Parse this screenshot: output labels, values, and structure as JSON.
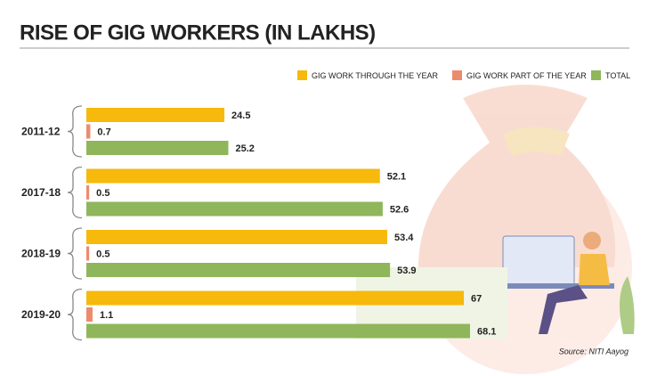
{
  "chart_data": {
    "type": "bar",
    "orientation": "horizontal",
    "title": "RISE OF GIG WORKERS (IN LAKHS)",
    "source": "Source: NITI Aayog",
    "categories": [
      "2011-12",
      "2017-18",
      "2018-19",
      "2019-20"
    ],
    "series": [
      {
        "name": "GIG WORK THROUGH THE YEAR",
        "color": "#f6b90c",
        "values": [
          24.5,
          52.1,
          53.4,
          67
        ]
      },
      {
        "name": "GIG WORK PART OF THE YEAR",
        "color": "#ee8a6c",
        "values": [
          0.7,
          0.5,
          0.5,
          1.1
        ]
      },
      {
        "name": "TOTAL",
        "color": "#8fb65b",
        "values": [
          25.2,
          52.6,
          53.9,
          68.1
        ]
      }
    ],
    "legend": "top-right"
  }
}
